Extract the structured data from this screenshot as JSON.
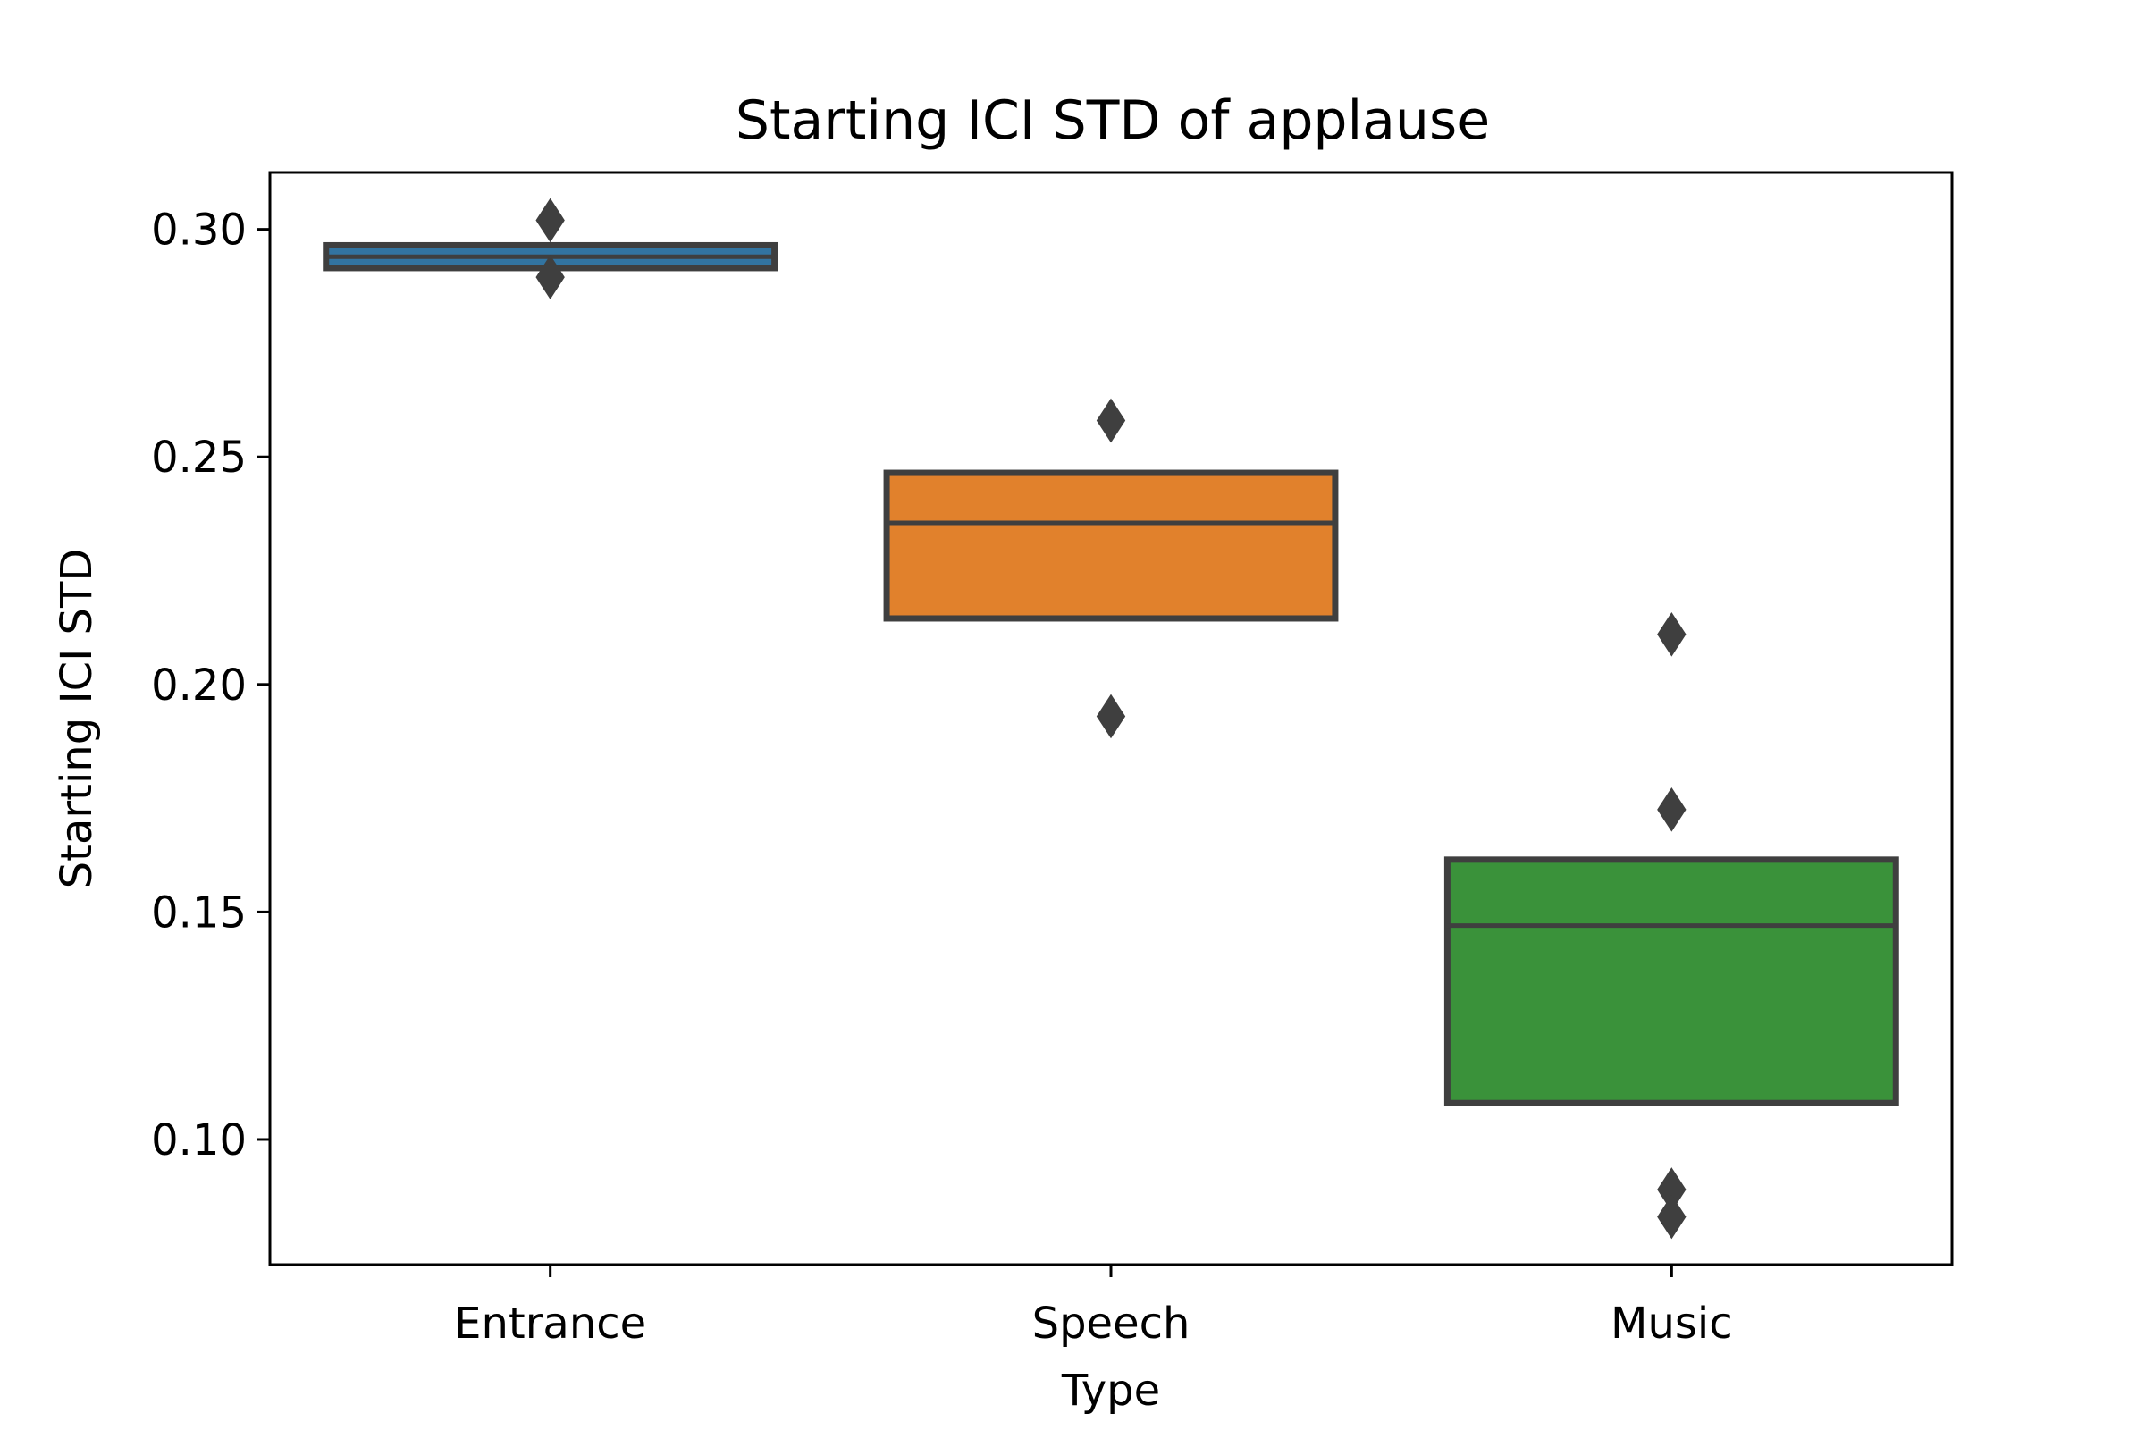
{
  "chart_data": {
    "type": "boxplot",
    "title": "Starting ICI STD of applause",
    "xlabel": "Type",
    "ylabel": "Starting ICI STD",
    "categories": [
      "Entrance",
      "Speech",
      "Music"
    ],
    "ylim": [
      0.0725,
      0.3125
    ],
    "yticks": [
      0.1,
      0.15,
      0.2,
      0.25,
      0.3
    ],
    "ytick_labels": [
      "0.10",
      "0.15",
      "0.20",
      "0.25",
      "0.30"
    ],
    "grid": false,
    "boxes": [
      {
        "category": "Entrance",
        "q1": 0.2915,
        "median": 0.294,
        "q3": 0.2965,
        "outliers": [
          0.302,
          0.2895
        ],
        "color": "#3274a1"
      },
      {
        "category": "Speech",
        "q1": 0.2145,
        "median": 0.2355,
        "q3": 0.2465,
        "outliers": [
          0.258,
          0.193
        ],
        "color": "#e1812c"
      },
      {
        "category": "Music",
        "q1": 0.108,
        "median": 0.147,
        "q3": 0.1615,
        "outliers": [
          0.211,
          0.1725,
          0.089,
          0.083
        ],
        "color": "#3a923a"
      }
    ],
    "edge_color": "#3f3f3f"
  }
}
